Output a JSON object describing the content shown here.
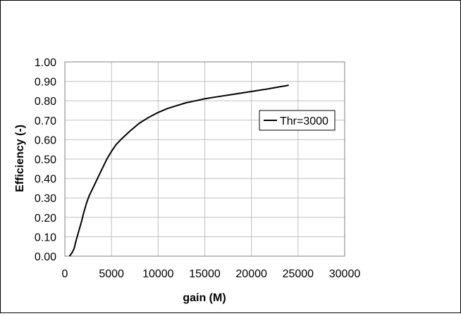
{
  "chart_data": {
    "type": "line",
    "title": "",
    "xlabel": "gain (M)",
    "ylabel": "Efficiency (-)",
    "xlim": [
      0,
      30000
    ],
    "ylim": [
      0,
      1.0
    ],
    "xticks": [
      "0",
      "5000",
      "10000",
      "15000",
      "20000",
      "25000",
      "30000"
    ],
    "yticks": [
      "0.00",
      "0.10",
      "0.20",
      "0.30",
      "0.40",
      "0.50",
      "0.60",
      "0.70",
      "0.80",
      "0.90",
      "1.00"
    ],
    "grid": true,
    "legend_position": "right",
    "series": [
      {
        "name": "Thr=3000",
        "color": "#000000",
        "x": [
          500,
          800,
          1000,
          1200,
          1500,
          1800,
          2000,
          2300,
          2600,
          3000,
          3500,
          4000,
          4500,
          5000,
          5500,
          6000,
          7000,
          8000,
          9000,
          10000,
          11000,
          12000,
          13000,
          14000,
          15000,
          16000,
          18000,
          20000,
          22000,
          24000
        ],
        "y": [
          0.0,
          0.02,
          0.04,
          0.08,
          0.13,
          0.18,
          0.22,
          0.27,
          0.31,
          0.35,
          0.4,
          0.45,
          0.5,
          0.54,
          0.575,
          0.6,
          0.645,
          0.685,
          0.715,
          0.74,
          0.76,
          0.775,
          0.79,
          0.8,
          0.81,
          0.818,
          0.833,
          0.848,
          0.863,
          0.88
        ]
      }
    ]
  }
}
